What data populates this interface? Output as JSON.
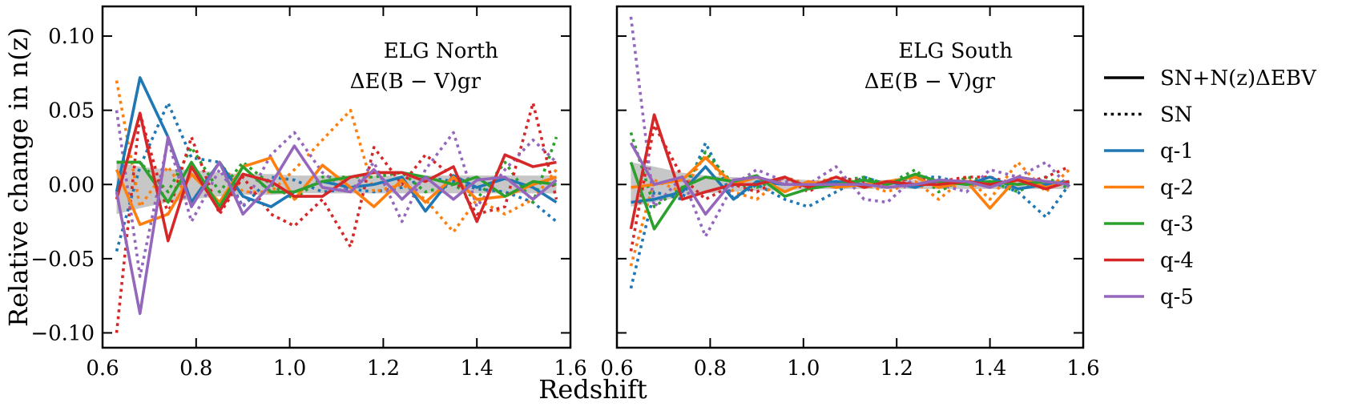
{
  "ylabel": "Relative change in n(z)",
  "xlabel": "Redshift",
  "legend": {
    "style_entries": [
      {
        "label": "SN+N(z)ΔEBV",
        "style": "solid"
      },
      {
        "label": "SN",
        "style": "dotted"
      }
    ],
    "series_entries": [
      "q-1",
      "q-2",
      "q-3",
      "q-4",
      "q-5"
    ]
  },
  "colors": {
    "q-1": "#1f77b4",
    "q-2": "#ff7f0e",
    "q-3": "#2ca02c",
    "q-4": "#d62728",
    "q-5": "#9467bd",
    "band": "#bdbdbd"
  },
  "chart_data": [
    {
      "type": "line",
      "panel": "left",
      "title": "ELG North",
      "subtitle": "ΔE(B − V)gr",
      "xlabel": "Redshift",
      "ylabel": "Relative change in n(z)",
      "xlim": [
        0.6,
        1.6
      ],
      "ylim": [
        -0.11,
        0.12
      ],
      "xticks": [
        "0.6",
        "0.8",
        "1.0",
        "1.2",
        "1.4",
        "1.6"
      ],
      "yticks": [
        "−0.10",
        "−0.05",
        "0.00",
        "0.05",
        "0.10"
      ],
      "x": [
        0.63,
        0.68,
        0.74,
        0.79,
        0.85,
        0.9,
        0.96,
        1.01,
        1.07,
        1.13,
        1.18,
        1.24,
        1.29,
        1.35,
        1.4,
        1.46,
        1.52,
        1.57
      ],
      "band": {
        "upper": [
          0.015,
          0.012,
          0.01,
          0.01,
          0.008,
          0.007,
          0.007,
          0.006,
          0.006,
          0.006,
          0.006,
          0.006,
          0.006,
          0.006,
          0.006,
          0.006,
          0.006,
          0.006
        ],
        "lower": [
          -0.02,
          -0.016,
          -0.012,
          -0.01,
          -0.008,
          -0.007,
          -0.007,
          -0.006,
          -0.006,
          -0.006,
          -0.006,
          -0.006,
          -0.006,
          -0.006,
          -0.006,
          -0.006,
          -0.006,
          -0.006
        ]
      },
      "series": [
        {
          "name": "q-1",
          "style": "solid",
          "values": [
            -0.005,
            0.072,
            0.032,
            -0.012,
            0.015,
            -0.008,
            -0.015,
            -0.005,
            0.002,
            -0.002,
            0.0,
            0.005,
            -0.018,
            0.006,
            -0.002,
            0.004,
            -0.002,
            -0.012
          ]
        },
        {
          "name": "q-2",
          "style": "solid",
          "values": [
            0.01,
            -0.027,
            -0.02,
            0.007,
            -0.012,
            0.012,
            0.018,
            -0.01,
            0.013,
            -0.002,
            -0.015,
            0.003,
            -0.012,
            0.005,
            -0.01,
            -0.008,
            0.0,
            0.005
          ]
        },
        {
          "name": "q-3",
          "style": "solid",
          "values": [
            0.015,
            0.015,
            -0.012,
            0.015,
            -0.015,
            0.012,
            -0.005,
            -0.005,
            0.002,
            0.005,
            0.008,
            0.008,
            0.005,
            0.0,
            0.005,
            -0.008,
            0.002,
            0.0
          ]
        },
        {
          "name": "q-4",
          "style": "solid",
          "values": [
            -0.01,
            0.048,
            -0.038,
            0.012,
            -0.018,
            0.007,
            0.002,
            -0.008,
            -0.008,
            0.005,
            0.008,
            0.008,
            0.002,
            0.012,
            -0.025,
            0.02,
            0.012,
            0.015
          ]
        },
        {
          "name": "q-5",
          "style": "solid",
          "values": [
            -0.005,
            -0.087,
            0.032,
            -0.015,
            0.015,
            -0.02,
            0.0,
            0.026,
            -0.002,
            -0.005,
            0.01,
            -0.01,
            0.005,
            -0.01,
            0.003,
            0.005,
            -0.01,
            0.003
          ]
        },
        {
          "name": "q-1",
          "style": "dotted",
          "values": [
            -0.045,
            0.012,
            0.055,
            0.018,
            0.015,
            -0.015,
            0.005,
            0.003,
            -0.005,
            -0.003,
            -0.005,
            -0.002,
            0.005,
            0.002,
            -0.003,
            -0.005,
            -0.012,
            -0.025
          ]
        },
        {
          "name": "q-2",
          "style": "dotted",
          "values": [
            0.07,
            -0.015,
            0.012,
            -0.012,
            0.015,
            -0.005,
            -0.005,
            0.01,
            0.03,
            0.05,
            -0.005,
            0.0,
            -0.01,
            -0.032,
            -0.01,
            -0.02,
            -0.01,
            0.01
          ]
        },
        {
          "name": "q-3",
          "style": "dotted",
          "values": [
            0.015,
            0.015,
            -0.005,
            0.025,
            -0.005,
            0.015,
            0.0,
            -0.01,
            0.005,
            0.005,
            0.005,
            0.008,
            -0.005,
            0.0,
            -0.01,
            0.015,
            -0.012,
            0.032
          ]
        },
        {
          "name": "q-4",
          "style": "dotted",
          "values": [
            -0.1,
            0.048,
            -0.02,
            0.032,
            -0.02,
            0.005,
            -0.02,
            -0.028,
            -0.01,
            -0.042,
            0.025,
            0.0,
            0.02,
            0.005,
            -0.02,
            -0.015,
            0.055,
            -0.01
          ]
        },
        {
          "name": "q-5",
          "style": "dotted",
          "values": [
            0.05,
            -0.062,
            0.03,
            -0.025,
            0.01,
            -0.015,
            0.02,
            0.035,
            0.008,
            -0.005,
            0.015,
            -0.025,
            0.01,
            0.035,
            -0.015,
            0.01,
            0.03,
            0.015
          ]
        }
      ]
    },
    {
      "type": "line",
      "panel": "right",
      "title": "ELG South",
      "subtitle": "ΔE(B − V)gr",
      "xlabel": "Redshift",
      "xlim": [
        0.6,
        1.6
      ],
      "ylim": [
        -0.11,
        0.12
      ],
      "xticks": [
        "0.6",
        "0.8",
        "1.0",
        "1.2",
        "1.4",
        "1.6"
      ],
      "x": [
        0.63,
        0.68,
        0.74,
        0.79,
        0.85,
        0.9,
        0.96,
        1.01,
        1.07,
        1.13,
        1.18,
        1.24,
        1.29,
        1.35,
        1.4,
        1.46,
        1.52,
        1.57
      ],
      "band": {
        "upper": [
          0.015,
          0.012,
          0.008,
          0.006,
          0.005,
          0.004,
          0.004,
          0.003,
          0.003,
          0.003,
          0.003,
          0.003,
          0.003,
          0.003,
          0.003,
          0.003,
          0.003,
          0.003
        ],
        "lower": [
          -0.015,
          -0.012,
          -0.008,
          -0.006,
          -0.005,
          -0.004,
          -0.004,
          -0.003,
          -0.003,
          -0.003,
          -0.003,
          -0.003,
          -0.003,
          -0.003,
          -0.003,
          -0.003,
          -0.003,
          -0.003
        ]
      },
      "series": [
        {
          "name": "q-1",
          "style": "solid",
          "values": [
            -0.012,
            -0.01,
            -0.005,
            0.012,
            -0.01,
            0.002,
            0.0,
            0.0,
            0.002,
            0.0,
            0.002,
            -0.002,
            0.003,
            0.0,
            0.005,
            -0.003,
            0.0,
            0.002
          ]
        },
        {
          "name": "q-2",
          "style": "solid",
          "values": [
            -0.002,
            0.0,
            0.003,
            0.018,
            0.0,
            0.005,
            -0.005,
            0.002,
            -0.002,
            0.0,
            0.002,
            0.005,
            -0.002,
            0.002,
            -0.016,
            0.005,
            -0.002,
            0.002
          ]
        },
        {
          "name": "q-3",
          "style": "solid",
          "values": [
            0.015,
            -0.03,
            -0.002,
            0.005,
            0.002,
            0.006,
            -0.008,
            -0.003,
            0.0,
            0.003,
            0.0,
            0.007,
            0.002,
            0.0,
            0.002,
            0.0,
            0.002,
            0.0
          ]
        },
        {
          "name": "q-4",
          "style": "solid",
          "values": [
            -0.03,
            0.047,
            -0.01,
            -0.005,
            0.0,
            0.0,
            0.005,
            -0.002,
            0.005,
            -0.002,
            0.002,
            0.0,
            0.0,
            0.002,
            0.0,
            0.003,
            -0.003,
            0.002
          ]
        },
        {
          "name": "q-5",
          "style": "solid",
          "values": [
            0.028,
            0.0,
            0.005,
            -0.02,
            0.003,
            0.005,
            0.0,
            0.0,
            0.0,
            0.0,
            -0.002,
            0.0,
            0.003,
            0.002,
            -0.002,
            0.005,
            0.002,
            0.0
          ]
        },
        {
          "name": "q-1",
          "style": "dotted",
          "values": [
            -0.07,
            -0.005,
            -0.01,
            0.028,
            -0.01,
            0.0,
            -0.01,
            -0.015,
            -0.005,
            0.005,
            0.0,
            0.005,
            0.005,
            0.0,
            0.002,
            -0.005,
            -0.022,
            0.0
          ]
        },
        {
          "name": "q-2",
          "style": "dotted",
          "values": [
            -0.055,
            0.003,
            -0.005,
            0.02,
            -0.005,
            -0.01,
            0.005,
            0.0,
            0.005,
            0.0,
            -0.005,
            0.002,
            -0.01,
            0.005,
            -0.01,
            0.015,
            -0.005,
            0.01
          ]
        },
        {
          "name": "q-3",
          "style": "dotted",
          "values": [
            0.035,
            -0.015,
            -0.002,
            0.022,
            0.0,
            -0.002,
            0.005,
            -0.002,
            0.002,
            0.005,
            0.0,
            0.01,
            -0.005,
            0.005,
            0.002,
            -0.005,
            0.005,
            -0.003
          ]
        },
        {
          "name": "q-4",
          "style": "dotted",
          "values": [
            -0.045,
            0.04,
            0.005,
            -0.01,
            0.0,
            -0.005,
            0.005,
            -0.005,
            0.005,
            0.002,
            0.0,
            0.005,
            0.002,
            0.005,
            0.005,
            0.0,
            0.005,
            0.012
          ]
        },
        {
          "name": "q-5",
          "style": "dotted",
          "values": [
            0.113,
            -0.015,
            0.005,
            -0.035,
            0.0,
            0.01,
            0.002,
            0.0,
            0.012,
            -0.01,
            -0.012,
            0.005,
            0.0,
            -0.005,
            0.01,
            0.005,
            0.015,
            -0.002
          ]
        }
      ]
    }
  ]
}
